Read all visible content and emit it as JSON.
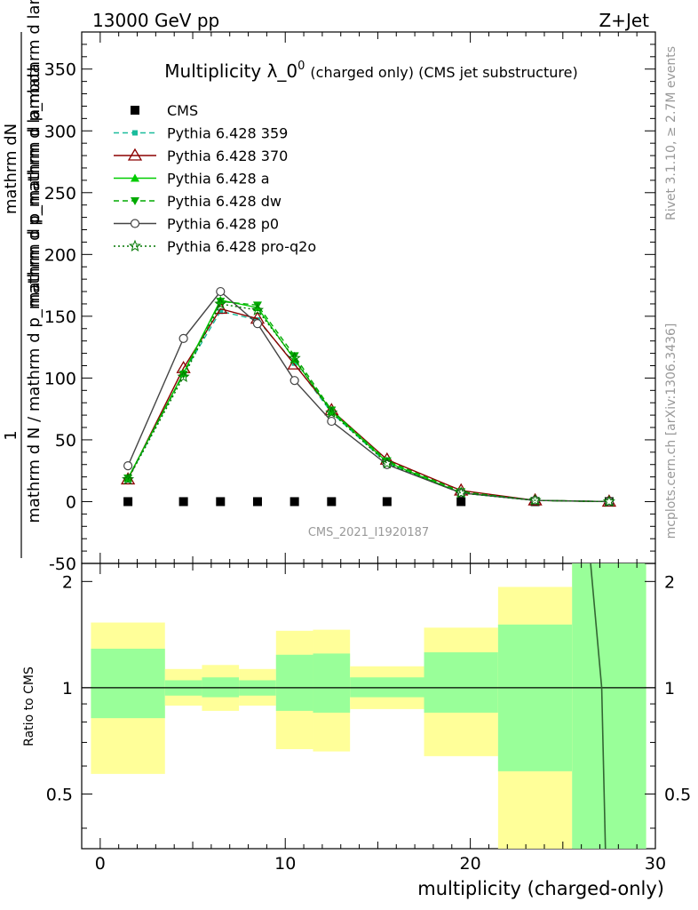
{
  "header": {
    "left": "13000 GeV pp",
    "right": "Z+Jet"
  },
  "title": {
    "main": "Multiplicity λ_0",
    "sup": "0",
    "paren": "(charged only) (CMS jet substructure)"
  },
  "side_labels": {
    "rivet": "Rivet 3.1.10, ≥ 2.7M events",
    "mcplots": "mcplots.cern.ch [arXiv:1306.3436]"
  },
  "watermark": "CMS_2021_I1920187",
  "y_axis": {
    "numerator_1": "1",
    "numerator_2": "mathrm dN",
    "denominator_1": "mathrm d N / mathrm d p_mathrm d p_mathrm d lambda",
    "denominator_2": "mathrm d p_mathrm d p_mathrm d lambda",
    "denominator_sub": "T"
  },
  "ratio_axis_label": "Ratio to CMS",
  "x_axis_label": "multiplicity (charged-only)",
  "colors": {
    "cms": "#000000",
    "p359": "#1abc9c",
    "p370": "#8b0000",
    "pa": "#00cc00",
    "pdw": "#00aa00",
    "pp0": "#444444",
    "pq2o": "#007700",
    "band_outer": "#ffff99",
    "band_inner": "#99ff99"
  },
  "chart_data": [
    {
      "type": "line",
      "title": "Multiplicity λ_0^0 (charged only) (CMS jet substructure)",
      "xlabel": "multiplicity (charged-only)",
      "ylabel": "1/(mathrm d N / mathrm d p_T mathrm d p_T mathrm d lambda) mathrm dN/(mathrm d p_T mathrm d p_T mathrm d lambda)",
      "xlim": [
        -1,
        30
      ],
      "ylim": [
        -50,
        380
      ],
      "yticks": [
        -50,
        0,
        50,
        100,
        150,
        200,
        250,
        300,
        350
      ],
      "legend": "top-left",
      "x": [
        1.5,
        4.5,
        6.5,
        8.5,
        10.5,
        12.5,
        15.5,
        19.5,
        23.5,
        27.5
      ],
      "series": [
        {
          "name": "CMS",
          "values": [
            0,
            0,
            0,
            0,
            0,
            0,
            0,
            0,
            0,
            0
          ]
        },
        {
          "name": "Pythia 6.428 359",
          "values": [
            18,
            104,
            154,
            147,
            112,
            72,
            31,
            7,
            1,
            0
          ]
        },
        {
          "name": "Pythia 6.428 370",
          "values": [
            18,
            108,
            156,
            148,
            111,
            74,
            34,
            9,
            1,
            0
          ]
        },
        {
          "name": "Pythia 6.428 a",
          "values": [
            19,
            104,
            163,
            157,
            115,
            73,
            32,
            7,
            1,
            0
          ]
        },
        {
          "name": "Pythia 6.428 dw",
          "values": [
            19,
            103,
            162,
            159,
            118,
            74,
            33,
            8,
            1,
            0
          ]
        },
        {
          "name": "Pythia 6.428 p0",
          "values": [
            29,
            132,
            170,
            144,
            98,
            65,
            30,
            7,
            1,
            0
          ]
        },
        {
          "name": "Pythia 6.428 pro-q2o",
          "values": [
            18,
            101,
            160,
            155,
            116,
            72,
            31,
            7,
            1,
            0
          ]
        }
      ]
    },
    {
      "type": "area",
      "ylabel": "Ratio to CMS",
      "xlabel": "multiplicity (charged-only)",
      "xlim": [
        -1,
        30
      ],
      "ylim": [
        0.35,
        2.25
      ],
      "yticks": [
        0.5,
        1,
        2
      ],
      "xticks": [
        0,
        10,
        20,
        30
      ],
      "bins": [
        {
          "lo": -0.5,
          "hi": 3.5,
          "outer": [
            0.57,
            1.53
          ],
          "inner": [
            0.82,
            1.29
          ]
        },
        {
          "lo": 3.5,
          "hi": 5.5,
          "outer": [
            0.89,
            1.13
          ],
          "inner": [
            0.95,
            1.05
          ]
        },
        {
          "lo": 5.5,
          "hi": 7.5,
          "outer": [
            0.86,
            1.16
          ],
          "inner": [
            0.94,
            1.07
          ]
        },
        {
          "lo": 7.5,
          "hi": 9.5,
          "outer": [
            0.89,
            1.13
          ],
          "inner": [
            0.95,
            1.05
          ]
        },
        {
          "lo": 9.5,
          "hi": 11.5,
          "outer": [
            0.67,
            1.45
          ],
          "inner": [
            0.86,
            1.24
          ]
        },
        {
          "lo": 11.5,
          "hi": 13.5,
          "outer": [
            0.66,
            1.46
          ],
          "inner": [
            0.85,
            1.25
          ]
        },
        {
          "lo": 13.5,
          "hi": 17.5,
          "outer": [
            0.87,
            1.15
          ],
          "inner": [
            0.94,
            1.07
          ]
        },
        {
          "lo": 17.5,
          "hi": 21.5,
          "outer": [
            0.64,
            1.48
          ],
          "inner": [
            0.85,
            1.26
          ]
        },
        {
          "lo": 21.5,
          "hi": 25.5,
          "outer": [
            0.35,
            1.93
          ],
          "inner": [
            0.58,
            1.51
          ]
        },
        {
          "lo": 25.5,
          "hi": 29.5,
          "outer": [
            0.35,
            2.25
          ],
          "inner": [
            0.35,
            2.25
          ]
        }
      ],
      "ratio_lines": [
        {
          "x": [
            26.5,
            27.1
          ],
          "y": [
            2.25,
            1.0
          ]
        },
        {
          "x": [
            27.1,
            27.3
          ],
          "y": [
            1.0,
            0.35
          ]
        }
      ]
    }
  ]
}
